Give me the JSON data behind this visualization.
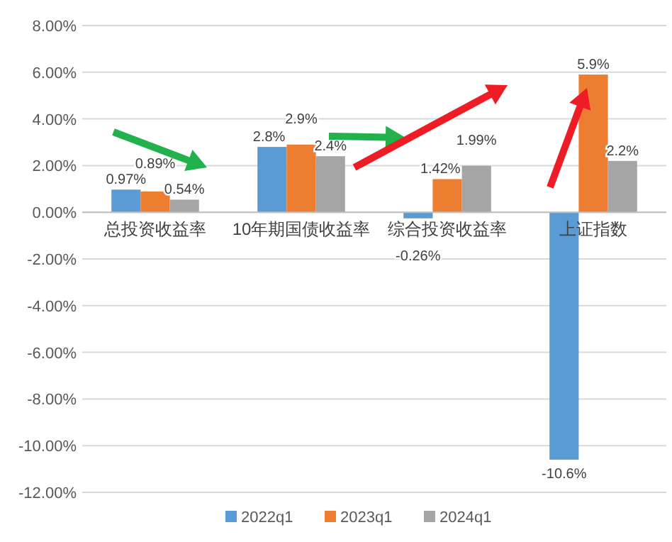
{
  "chart_data": {
    "type": "bar",
    "categories": [
      "总投资收益率",
      "10年期国债收益率",
      "综合投资收益率",
      "上证指数"
    ],
    "series": [
      {
        "name": "2022q1",
        "color": "#5b9bd5",
        "values": [
          0.97,
          2.8,
          -0.26,
          -10.6
        ],
        "value_labels": [
          "0.97%",
          "2.8%",
          "-0.26%",
          "-10.6%"
        ]
      },
      {
        "name": "2023q1",
        "color": "#ed7d31",
        "values": [
          0.89,
          2.9,
          1.42,
          5.9
        ],
        "value_labels": [
          "0.89%",
          "2.9%",
          "1.42%",
          "5.9%"
        ]
      },
      {
        "name": "2024q1",
        "color": "#a5a5a5",
        "values": [
          0.54,
          2.4,
          1.99,
          2.2
        ],
        "value_labels": [
          "0.54%",
          "2.4%",
          "1.99%",
          "2.2%"
        ]
      }
    ],
    "ylim": [
      -12,
      8
    ],
    "yticks": [
      {
        "value": 8,
        "label": "8.00%"
      },
      {
        "value": 6,
        "label": "6.00%"
      },
      {
        "value": 4,
        "label": "4.00%"
      },
      {
        "value": 2,
        "label": "2.00%"
      },
      {
        "value": 0,
        "label": "0.00%"
      },
      {
        "value": -2,
        "label": "-2.00%"
      },
      {
        "value": -4,
        "label": "-4.00%"
      },
      {
        "value": -6,
        "label": "-6.00%"
      },
      {
        "value": -8,
        "label": "-8.00%"
      },
      {
        "value": -10,
        "label": "-10.00%"
      },
      {
        "value": -12,
        "label": "-12.00%"
      }
    ],
    "grid": "y",
    "legend": "bottom"
  }
}
